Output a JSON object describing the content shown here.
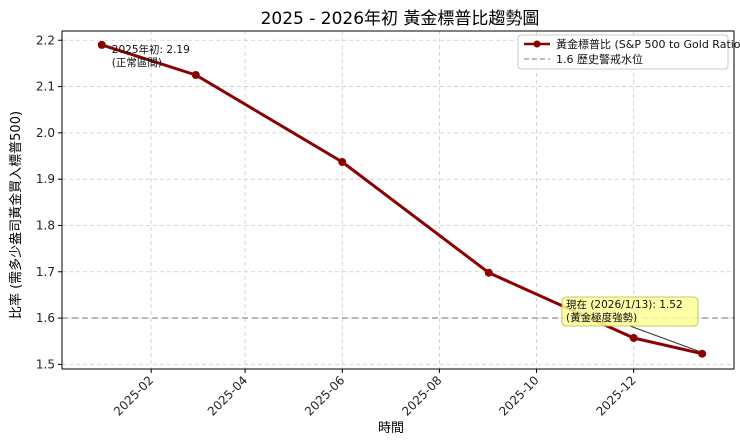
{
  "chart_data": {
    "type": "line",
    "title": "2025 - 2026年初 黃金標普比趨勢圖",
    "xlabel": "時間",
    "ylabel": "比率 (需多少盎司黃金買入標普500)",
    "x_ticks": [
      "2025-02",
      "2025-04",
      "2025-06",
      "2025-08",
      "2025-10",
      "2025-12"
    ],
    "y_ticks": [
      "1.5",
      "1.6",
      "1.7",
      "1.8",
      "1.9",
      "2.0",
      "2.1",
      "2.2"
    ],
    "ylim": [
      1.49,
      2.22
    ],
    "xlim": [
      "2024-12-07",
      "2026-02-02"
    ],
    "grid": true,
    "legend_position": "top-right",
    "series": [
      {
        "name": "黃金標普比 (S&P 500 to Gold Ratio)",
        "color": "#8b0000",
        "x": [
          "2025-01-01",
          "2025-03-01",
          "2025-06-01",
          "2025-09-01",
          "2025-12-01",
          "2026-01-13"
        ],
        "values": [
          2.19,
          2.125,
          1.937,
          1.698,
          1.557,
          1.523
        ]
      }
    ],
    "reference_line": {
      "label": "1.6 歷史警戒水位",
      "value": 1.6,
      "color": "#999999"
    },
    "annotations": [
      {
        "x": "2025-01-01",
        "y": 2.19,
        "lines": [
          "2025年初: 2.19",
          "(正常區間)"
        ]
      },
      {
        "x": "2026-01-13",
        "y": 1.523,
        "lines": [
          "現在 (2026/1/13): 1.52",
          "(黃金極度強勢)"
        ]
      }
    ]
  }
}
